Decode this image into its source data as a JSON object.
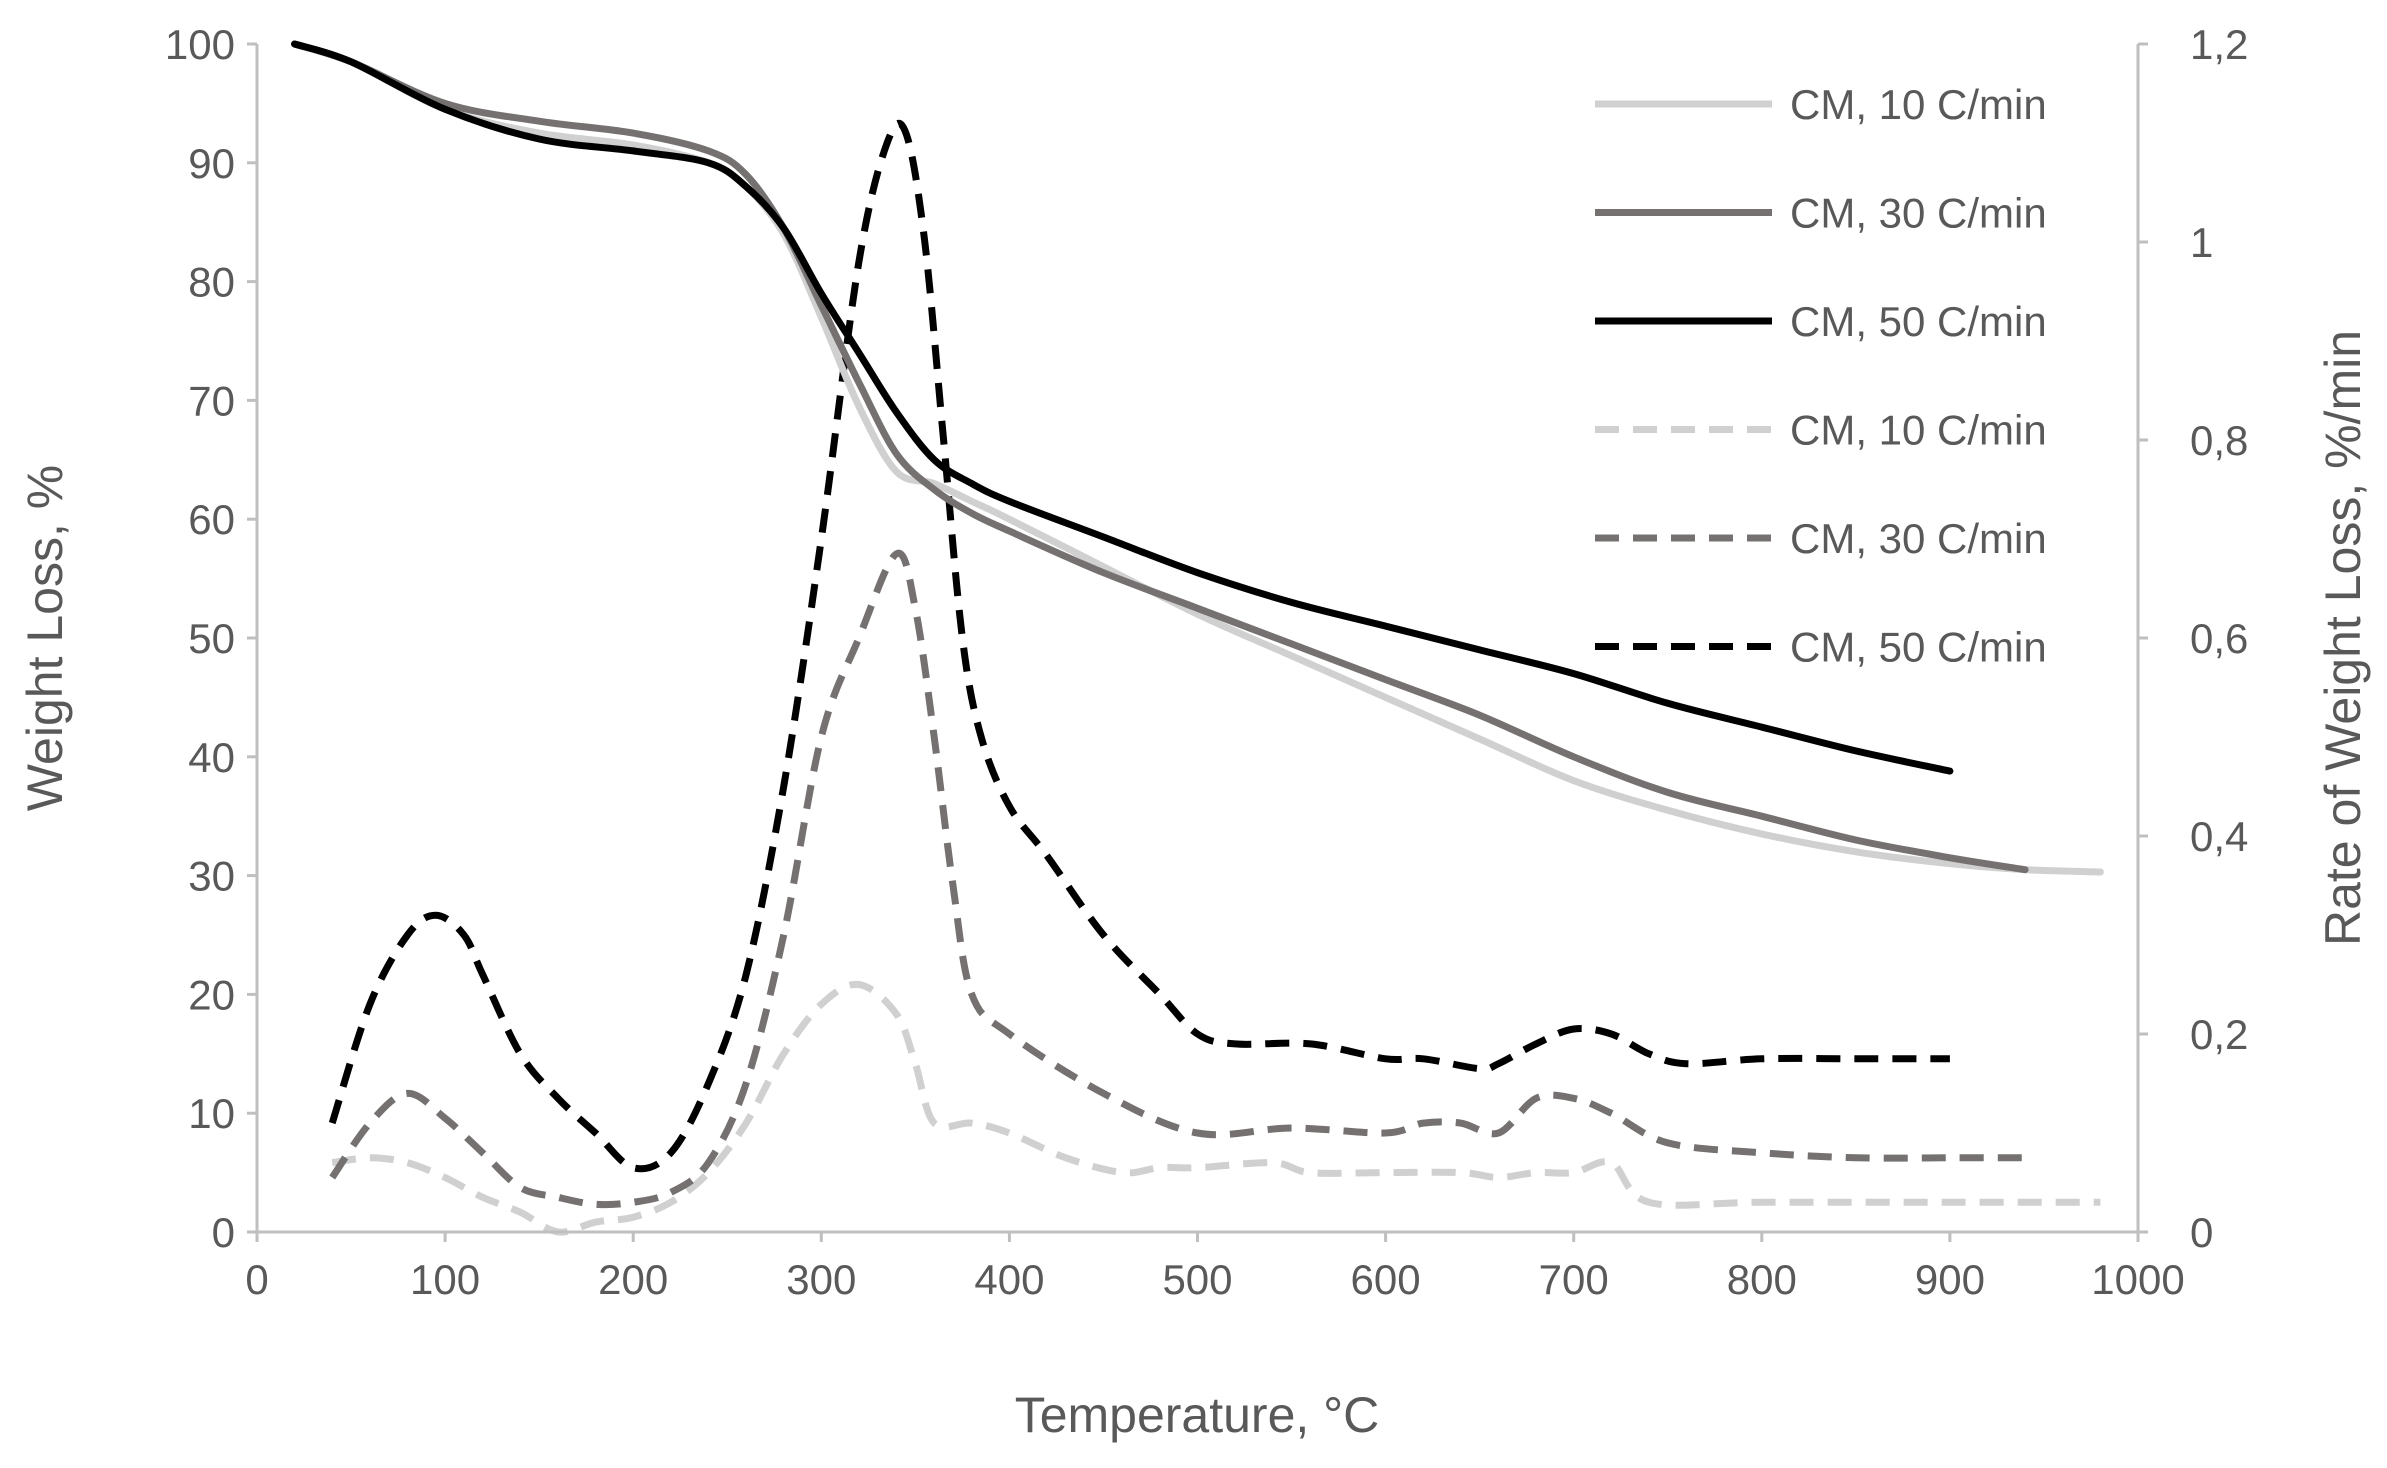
{
  "chart_data": {
    "type": "line",
    "title": "",
    "xlabel": "Temperature, °C",
    "ylabel": "Weight Loss, %",
    "y2label": "Rate of Weight Loss, %/min",
    "xlim": [
      0,
      1000
    ],
    "ylim": [
      0,
      100
    ],
    "y2lim": [
      0,
      1.2
    ],
    "x_ticks": [
      "0",
      "100",
      "200",
      "300",
      "400",
      "500",
      "600",
      "700",
      "800",
      "900",
      "1000"
    ],
    "x_tick_values": [
      0,
      100,
      200,
      300,
      400,
      500,
      600,
      700,
      800,
      900,
      1000
    ],
    "y_ticks": [
      "0",
      "10",
      "20",
      "30",
      "40",
      "50",
      "60",
      "70",
      "80",
      "90",
      "100"
    ],
    "y_tick_values": [
      0,
      10,
      20,
      30,
      40,
      50,
      60,
      70,
      80,
      90,
      100
    ],
    "y2_ticks": [
      "0",
      "0,2",
      "0,4",
      "0,6",
      "0,8",
      "1",
      "1,2"
    ],
    "y2_tick_values": [
      0,
      0.2,
      0.4,
      0.6,
      0.8,
      1.0,
      1.2
    ],
    "grid": false,
    "legend_position": "top-right",
    "series": [
      {
        "name": "CM, 10 C/min",
        "axis": "left",
        "style": "solid",
        "color": "#d0d0d0",
        "x": [
          20,
          50,
          100,
          150,
          200,
          240,
          260,
          280,
          300,
          320,
          340,
          360,
          380,
          400,
          450,
          500,
          550,
          600,
          650,
          700,
          750,
          800,
          850,
          900,
          940,
          980
        ],
        "y": [
          100,
          98.5,
          94.5,
          92.5,
          91.5,
          90,
          88,
          84,
          77,
          69.5,
          64,
          63,
          61.5,
          60,
          56,
          52,
          48.5,
          45,
          41.5,
          38,
          35.5,
          33.5,
          32,
          31,
          30.5,
          30.3
        ]
      },
      {
        "name": "CM, 30 C/min",
        "axis": "left",
        "style": "solid",
        "color": "#767171",
        "x": [
          20,
          50,
          100,
          150,
          200,
          240,
          260,
          280,
          300,
          320,
          340,
          360,
          380,
          400,
          450,
          500,
          550,
          600,
          650,
          700,
          750,
          800,
          850,
          900,
          940
        ],
        "y": [
          100,
          98.5,
          95,
          93.5,
          92.5,
          91,
          89,
          84.5,
          78,
          71.5,
          65.5,
          62.5,
          60.5,
          59,
          55.5,
          52.5,
          49.5,
          46.5,
          43.5,
          40,
          37,
          35,
          33,
          31.5,
          30.5
        ]
      },
      {
        "name": "CM, 50 C/min",
        "axis": "left",
        "style": "solid",
        "color": "#000000",
        "x": [
          20,
          50,
          100,
          150,
          200,
          240,
          260,
          280,
          300,
          320,
          340,
          360,
          380,
          400,
          450,
          500,
          550,
          600,
          650,
          700,
          750,
          800,
          850,
          900
        ],
        "y": [
          100,
          98.5,
          94.5,
          92,
          91,
          90,
          88,
          84.5,
          79,
          74,
          69,
          65,
          63,
          61.5,
          58.5,
          55.5,
          53,
          51,
          49,
          47,
          44.5,
          42.5,
          40.5,
          38.8
        ]
      },
      {
        "name": "CM, 10 C/min",
        "axis": "right",
        "style": "dashed",
        "color": "#d0d0d0",
        "x": [
          40,
          60,
          80,
          100,
          120,
          140,
          160,
          180,
          200,
          220,
          240,
          260,
          280,
          300,
          320,
          340,
          350,
          360,
          380,
          400,
          430,
          460,
          480,
          500,
          540,
          560,
          600,
          640,
          660,
          680,
          700,
          720,
          740,
          800,
          900,
          980
        ],
        "y": [
          0.07,
          0.075,
          0.07,
          0.055,
          0.035,
          0.02,
          0.0,
          0.01,
          0.015,
          0.03,
          0.06,
          0.11,
          0.18,
          0.23,
          0.25,
          0.22,
          0.17,
          0.11,
          0.11,
          0.1,
          0.075,
          0.06,
          0.065,
          0.065,
          0.07,
          0.06,
          0.06,
          0.06,
          0.055,
          0.06,
          0.06,
          0.07,
          0.03,
          0.03,
          0.03,
          0.03
        ]
      },
      {
        "name": "CM, 30 C/min",
        "axis": "right",
        "style": "dashed",
        "color": "#767171",
        "x": [
          40,
          60,
          80,
          100,
          120,
          140,
          160,
          180,
          200,
          220,
          240,
          260,
          280,
          300,
          320,
          340,
          350,
          360,
          370,
          380,
          400,
          450,
          500,
          550,
          600,
          620,
          640,
          660,
          680,
          700,
          720,
          750,
          800,
          850,
          900,
          940
        ],
        "y": [
          0.055,
          0.11,
          0.14,
          0.115,
          0.08,
          0.045,
          0.035,
          0.028,
          0.03,
          0.04,
          0.07,
          0.15,
          0.3,
          0.5,
          0.6,
          0.685,
          0.63,
          0.5,
          0.35,
          0.24,
          0.2,
          0.14,
          0.1,
          0.105,
          0.1,
          0.11,
          0.11,
          0.1,
          0.135,
          0.135,
          0.12,
          0.09,
          0.08,
          0.075,
          0.075,
          0.075
        ]
      },
      {
        "name": "CM, 50 C/min",
        "axis": "right",
        "style": "dashed",
        "color": "#000000",
        "x": [
          40,
          60,
          80,
          95,
          110,
          120,
          140,
          160,
          180,
          200,
          220,
          240,
          260,
          280,
          300,
          320,
          335,
          345,
          355,
          365,
          375,
          385,
          400,
          420,
          450,
          480,
          500,
          520,
          560,
          600,
          620,
          650,
          660,
          680,
          700,
          720,
          740,
          760,
          800,
          850,
          900
        ],
        "y": [
          0.11,
          0.23,
          0.3,
          0.32,
          0.3,
          0.26,
          0.18,
          0.135,
          0.1,
          0.065,
          0.08,
          0.15,
          0.26,
          0.45,
          0.7,
          0.98,
          1.1,
          1.11,
          1.0,
          0.8,
          0.6,
          0.5,
          0.43,
          0.38,
          0.3,
          0.24,
          0.2,
          0.19,
          0.19,
          0.175,
          0.175,
          0.165,
          0.17,
          0.19,
          0.205,
          0.2,
          0.18,
          0.17,
          0.175,
          0.175,
          0.175
        ]
      }
    ]
  }
}
